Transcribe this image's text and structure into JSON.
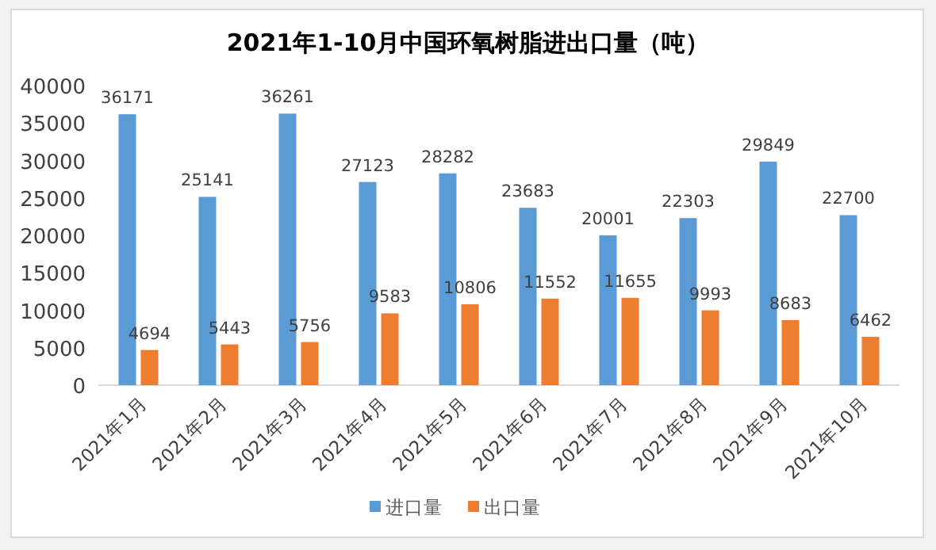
{
  "chart_data": {
    "type": "bar",
    "title": "2021年1-10月中国环氧树脂进出口量（吨）",
    "categories": [
      "2021年1月",
      "2021年2月",
      "2021年3月",
      "2021年4月",
      "2021年5月",
      "2021年6月",
      "2021年7月",
      "2021年8月",
      "2021年9月",
      "2021年10月"
    ],
    "series": [
      {
        "name": "进口量",
        "color": "#5b9bd5",
        "values": [
          36171,
          25141,
          36261,
          27123,
          28282,
          23683,
          20001,
          22303,
          29849,
          22700
        ]
      },
      {
        "name": "出口量",
        "color": "#ed7d31",
        "values": [
          4694,
          5443,
          5756,
          9583,
          10806,
          11552,
          11655,
          9993,
          8683,
          6462
        ]
      }
    ],
    "ylim": [
      0,
      40000
    ],
    "yticks": [
      0,
      5000,
      10000,
      15000,
      20000,
      25000,
      30000,
      35000,
      40000
    ],
    "data_labels": true,
    "grid": false,
    "legend": "bottom"
  }
}
